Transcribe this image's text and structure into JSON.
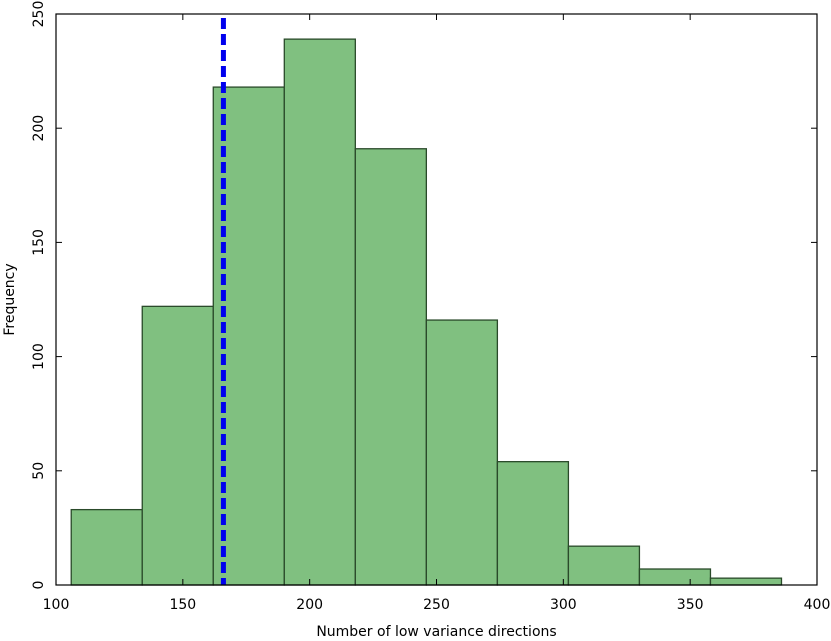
{
  "chart_data": {
    "type": "bar",
    "subtype": "histogram",
    "xlabel": "Number of low variance directions",
    "ylabel": "Frequency",
    "xlim": [
      100,
      400
    ],
    "ylim": [
      0,
      250
    ],
    "xticks": [
      100,
      150,
      200,
      250,
      300,
      350,
      400
    ],
    "yticks": [
      0,
      50,
      100,
      150,
      200,
      250
    ],
    "bin_edges": [
      106,
      134,
      162,
      190,
      218,
      246,
      274,
      302,
      330,
      358,
      386
    ],
    "values": [
      33,
      122,
      218,
      239,
      191,
      116,
      54,
      17,
      7,
      3
    ],
    "bar_color": "#80c080",
    "bar_edge_color": "#2a4a2a",
    "reference_line": {
      "x": 166,
      "style": "dashed",
      "color": "#0000ee"
    },
    "grid": false
  }
}
